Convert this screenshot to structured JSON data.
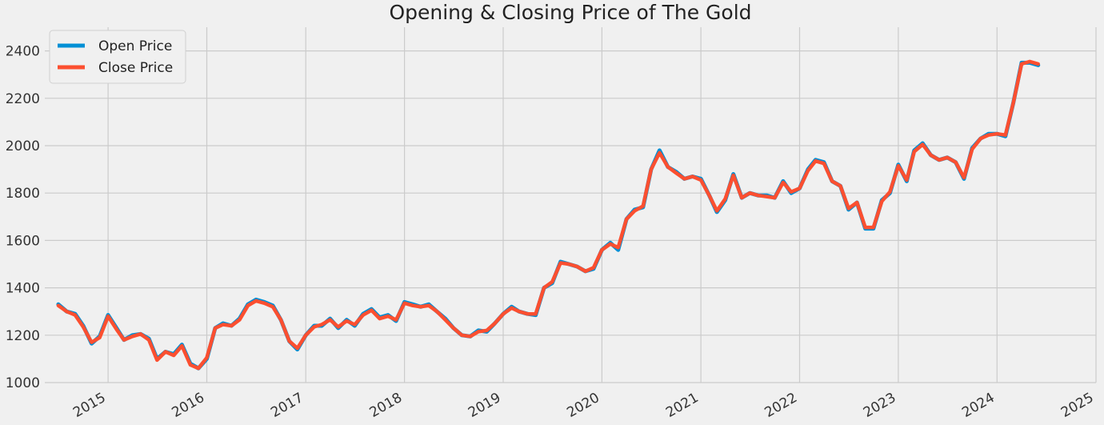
{
  "chart_data": {
    "type": "line",
    "title": "Opening & Closing Price of The Gold",
    "xlabel": "",
    "ylabel": "",
    "x_ticks": [
      "2015",
      "2016",
      "2017",
      "2018",
      "2019",
      "2020",
      "2021",
      "2022",
      "2023",
      "2024",
      "2025"
    ],
    "y_ticks": [
      "1000",
      "1200",
      "1400",
      "1600",
      "1800",
      "2000",
      "2200",
      "2400"
    ],
    "xlim": [
      "2014-05-12",
      "2025-01-01"
    ],
    "ylim": [
      1000,
      2500
    ],
    "grid": true,
    "legend_position": "top-left",
    "colors": {
      "open": "#008fd5",
      "close": "#fc4f30",
      "background": "#f0f0f0",
      "grid": "#cbcbcb"
    },
    "series": [
      {
        "name": "Open Price",
        "color": "#008fd5",
        "x": [
          "2014-07-01",
          "2014-08-01",
          "2014-09-01",
          "2014-10-01",
          "2014-11-01",
          "2014-12-01",
          "2015-01-01",
          "2015-02-01",
          "2015-03-01",
          "2015-04-01",
          "2015-05-01",
          "2015-06-01",
          "2015-07-01",
          "2015-08-01",
          "2015-09-01",
          "2015-10-01",
          "2015-11-01",
          "2015-12-01",
          "2016-01-01",
          "2016-02-01",
          "2016-03-01",
          "2016-04-01",
          "2016-05-01",
          "2016-06-01",
          "2016-07-01",
          "2016-08-01",
          "2016-09-01",
          "2016-10-01",
          "2016-11-01",
          "2016-12-01",
          "2017-01-01",
          "2017-02-01",
          "2017-03-01",
          "2017-04-01",
          "2017-05-01",
          "2017-06-01",
          "2017-07-01",
          "2017-08-01",
          "2017-09-01",
          "2017-10-01",
          "2017-11-01",
          "2017-12-01",
          "2018-01-01",
          "2018-02-01",
          "2018-03-01",
          "2018-04-01",
          "2018-05-01",
          "2018-06-01",
          "2018-07-01",
          "2018-08-01",
          "2018-09-01",
          "2018-10-01",
          "2018-11-01",
          "2018-12-01",
          "2019-01-01",
          "2019-02-01",
          "2019-03-01",
          "2019-04-01",
          "2019-05-01",
          "2019-06-01",
          "2019-07-01",
          "2019-08-01",
          "2019-09-01",
          "2019-10-01",
          "2019-11-01",
          "2019-12-01",
          "2020-01-01",
          "2020-02-01",
          "2020-03-01",
          "2020-04-01",
          "2020-05-01",
          "2020-06-01",
          "2020-07-01",
          "2020-08-01",
          "2020-09-01",
          "2020-10-01",
          "2020-11-01",
          "2020-12-01",
          "2021-01-01",
          "2021-02-01",
          "2021-03-01",
          "2021-04-01",
          "2021-05-01",
          "2021-06-01",
          "2021-07-01",
          "2021-08-01",
          "2021-09-01",
          "2021-10-01",
          "2021-11-01",
          "2021-12-01",
          "2022-01-01",
          "2022-02-01",
          "2022-03-01",
          "2022-04-01",
          "2022-05-01",
          "2022-06-01",
          "2022-07-01",
          "2022-08-01",
          "2022-09-01",
          "2022-10-01",
          "2022-11-01",
          "2022-12-01",
          "2023-01-01",
          "2023-02-01",
          "2023-03-01",
          "2023-04-01",
          "2023-05-01",
          "2023-06-01",
          "2023-07-01",
          "2023-08-01",
          "2023-09-01",
          "2023-10-01",
          "2023-11-01",
          "2023-12-01",
          "2024-01-01",
          "2024-02-01",
          "2024-03-01",
          "2024-04-01",
          "2024-05-01",
          "2024-06-01"
        ],
        "values": [
          1330,
          1300,
          1290,
          1240,
          1165,
          1195,
          1285,
          1230,
          1180,
          1200,
          1205,
          1185,
          1100,
          1130,
          1120,
          1160,
          1080,
          1060,
          1100,
          1230,
          1250,
          1240,
          1270,
          1330,
          1350,
          1340,
          1325,
          1265,
          1175,
          1140,
          1200,
          1240,
          1240,
          1270,
          1230,
          1265,
          1240,
          1290,
          1310,
          1275,
          1285,
          1260,
          1340,
          1330,
          1320,
          1330,
          1300,
          1270,
          1230,
          1200,
          1195,
          1220,
          1215,
          1250,
          1290,
          1320,
          1300,
          1290,
          1285,
          1400,
          1420,
          1510,
          1500,
          1490,
          1470,
          1480,
          1560,
          1590,
          1560,
          1690,
          1730,
          1740,
          1900,
          1980,
          1910,
          1890,
          1860,
          1870,
          1860,
          1790,
          1720,
          1770,
          1880,
          1780,
          1800,
          1790,
          1790,
          1780,
          1850,
          1800,
          1820,
          1900,
          1940,
          1930,
          1850,
          1830,
          1730,
          1760,
          1650,
          1650,
          1770,
          1800,
          1920,
          1850,
          1980,
          2010,
          1960,
          1940,
          1950,
          1930,
          1860,
          1990,
          2030,
          2050,
          2050,
          2040,
          2180,
          2350,
          2350,
          2340
        ]
      },
      {
        "name": "Close Price",
        "color": "#fc4f30",
        "x": [
          "2014-07-01",
          "2014-08-01",
          "2014-09-01",
          "2014-10-01",
          "2014-11-01",
          "2014-12-01",
          "2015-01-01",
          "2015-02-01",
          "2015-03-01",
          "2015-04-01",
          "2015-05-01",
          "2015-06-01",
          "2015-07-01",
          "2015-08-01",
          "2015-09-01",
          "2015-10-01",
          "2015-11-01",
          "2015-12-01",
          "2016-01-01",
          "2016-02-01",
          "2016-03-01",
          "2016-04-01",
          "2016-05-01",
          "2016-06-01",
          "2016-07-01",
          "2016-08-01",
          "2016-09-01",
          "2016-10-01",
          "2016-11-01",
          "2016-12-01",
          "2017-01-01",
          "2017-02-01",
          "2017-03-01",
          "2017-04-01",
          "2017-05-01",
          "2017-06-01",
          "2017-07-01",
          "2017-08-01",
          "2017-09-01",
          "2017-10-01",
          "2017-11-01",
          "2017-12-01",
          "2018-01-01",
          "2018-02-01",
          "2018-03-01",
          "2018-04-01",
          "2018-05-01",
          "2018-06-01",
          "2018-07-01",
          "2018-08-01",
          "2018-09-01",
          "2018-10-01",
          "2018-11-01",
          "2018-12-01",
          "2019-01-01",
          "2019-02-01",
          "2019-03-01",
          "2019-04-01",
          "2019-05-01",
          "2019-06-01",
          "2019-07-01",
          "2019-08-01",
          "2019-09-01",
          "2019-10-01",
          "2019-11-01",
          "2019-12-01",
          "2020-01-01",
          "2020-02-01",
          "2020-03-01",
          "2020-04-01",
          "2020-05-01",
          "2020-06-01",
          "2020-07-01",
          "2020-08-01",
          "2020-09-01",
          "2020-10-01",
          "2020-11-01",
          "2020-12-01",
          "2021-01-01",
          "2021-02-01",
          "2021-03-01",
          "2021-04-01",
          "2021-05-01",
          "2021-06-01",
          "2021-07-01",
          "2021-08-01",
          "2021-09-01",
          "2021-10-01",
          "2021-11-01",
          "2021-12-01",
          "2022-01-01",
          "2022-02-01",
          "2022-03-01",
          "2022-04-01",
          "2022-05-01",
          "2022-06-01",
          "2022-07-01",
          "2022-08-01",
          "2022-09-01",
          "2022-10-01",
          "2022-11-01",
          "2022-12-01",
          "2023-01-01",
          "2023-02-01",
          "2023-03-01",
          "2023-04-01",
          "2023-05-01",
          "2023-06-01",
          "2023-07-01",
          "2023-08-01",
          "2023-09-01",
          "2023-10-01",
          "2023-11-01",
          "2023-12-01",
          "2024-01-01",
          "2024-02-01",
          "2024-03-01",
          "2024-04-01",
          "2024-05-01",
          "2024-06-01"
        ],
        "values": [
          1325,
          1300,
          1285,
          1235,
          1170,
          1190,
          1280,
          1225,
          1180,
          1195,
          1205,
          1180,
          1095,
          1130,
          1115,
          1155,
          1075,
          1060,
          1105,
          1230,
          1245,
          1240,
          1265,
          1325,
          1345,
          1335,
          1320,
          1265,
          1175,
          1145,
          1200,
          1235,
          1245,
          1265,
          1235,
          1260,
          1245,
          1285,
          1305,
          1270,
          1280,
          1265,
          1335,
          1325,
          1320,
          1325,
          1300,
          1265,
          1230,
          1200,
          1195,
          1215,
          1220,
          1250,
          1290,
          1315,
          1300,
          1290,
          1290,
          1400,
          1425,
          1505,
          1500,
          1490,
          1470,
          1485,
          1560,
          1585,
          1570,
          1690,
          1725,
          1745,
          1900,
          1970,
          1910,
          1885,
          1860,
          1870,
          1855,
          1790,
          1725,
          1775,
          1875,
          1780,
          1800,
          1790,
          1785,
          1780,
          1845,
          1805,
          1820,
          1895,
          1935,
          1925,
          1850,
          1830,
          1735,
          1760,
          1655,
          1655,
          1765,
          1805,
          1915,
          1855,
          1975,
          2005,
          1960,
          1940,
          1950,
          1930,
          1865,
          1985,
          2030,
          2045,
          2050,
          2045,
          2180,
          2345,
          2355,
          2345
        ]
      }
    ]
  }
}
